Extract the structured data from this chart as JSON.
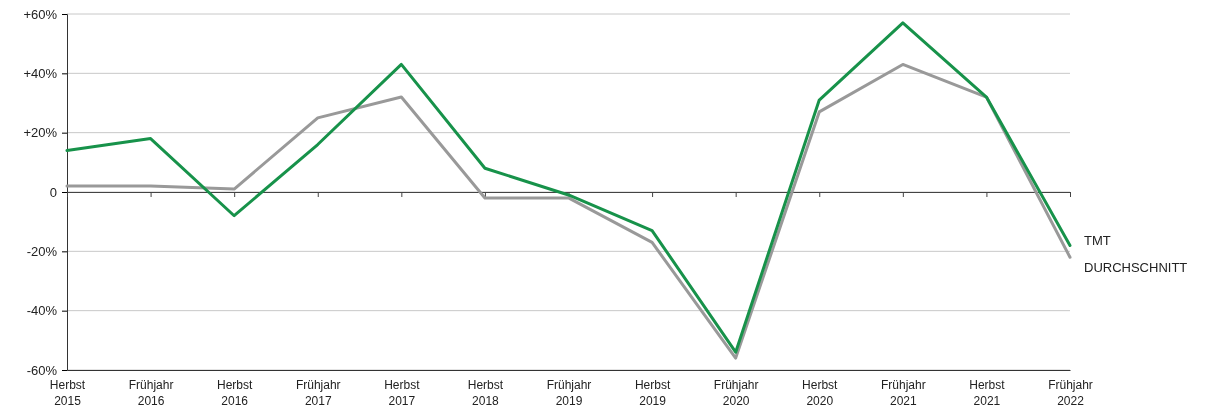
{
  "chart_data": {
    "type": "line",
    "categories": [
      "Herbst\n2015",
      "Frühjahr\n2016",
      "Herbst\n2016",
      "Frühjahr\n2017",
      "Herbst\n2017",
      "Herbst\n2018",
      "Frühjahr\n2019",
      "Herbst\n2019",
      "Frühjahr\n2020",
      "Herbst\n2020",
      "Frühjahr\n2021",
      "Herbst\n2021",
      "Frühjahr\n2022"
    ],
    "series": [
      {
        "name": "DURCHSCHNITT",
        "color": "#999999",
        "values": [
          2,
          2,
          1,
          25,
          32,
          -2,
          -2,
          -17,
          -56,
          27,
          43,
          32,
          -22
        ]
      },
      {
        "name": "TMT",
        "color": "#17924a",
        "values": [
          14,
          18,
          -8,
          16,
          43,
          8,
          -1,
          -13,
          -54,
          31,
          57,
          32,
          -18
        ]
      }
    ],
    "ylim": [
      -60,
      60
    ],
    "yticks": [
      {
        "value": -60,
        "label": "-60%"
      },
      {
        "value": -40,
        "label": "-40%"
      },
      {
        "value": -20,
        "label": "-20%"
      },
      0,
      {
        "value": 20,
        "label": "+20%"
      },
      {
        "value": 40,
        "label": "+40%"
      },
      {
        "value": 60,
        "label": "+60%"
      }
    ],
    "grid": "y",
    "legend": false,
    "marker": "none",
    "line_style": "solid"
  }
}
